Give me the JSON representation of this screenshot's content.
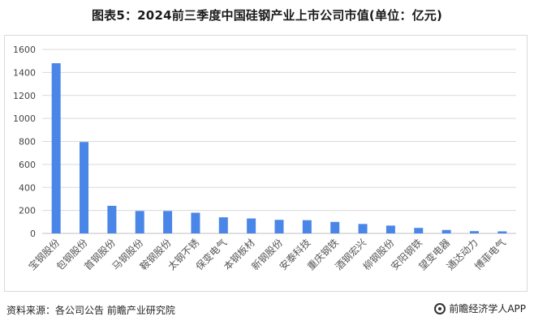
{
  "header": {
    "title": "图表5：2024前三季度中国硅钢产业上市公司市值(单位：亿元)"
  },
  "footer": {
    "source": "资料来源：各公司公告 前瞻产业研究院",
    "brand": "前瞻经济学人APP",
    "brand_icon": "qianzhan-logo-icon"
  },
  "colors": {
    "bar": "#4a86e8",
    "grid": "#d9d9d9",
    "axis": "#bfbfbf"
  },
  "chart_data": {
    "type": "bar",
    "title": "图表5：2024前三季度中国硅钢产业上市公司市值(单位：亿元)",
    "xlabel": "",
    "ylabel": "",
    "ylim": [
      0,
      1600
    ],
    "yticks": [
      0,
      200,
      400,
      600,
      800,
      1000,
      1200,
      1400,
      1600
    ],
    "grid": true,
    "legend": "none",
    "categories": [
      "宝钢股份",
      "包钢股份",
      "首钢股份",
      "马钢股份",
      "鞍钢股份",
      "太钢不锈",
      "保变电气",
      "本钢板材",
      "新钢股份",
      "安泰科技",
      "重庆钢铁",
      "酒钢宏兴",
      "柳钢股份",
      "安阳钢铁",
      "望变电器",
      "通达动力",
      "博菲电气"
    ],
    "values": [
      1480,
      795,
      240,
      195,
      195,
      180,
      140,
      130,
      118,
      115,
      100,
      82,
      68,
      48,
      30,
      20,
      18
    ]
  }
}
